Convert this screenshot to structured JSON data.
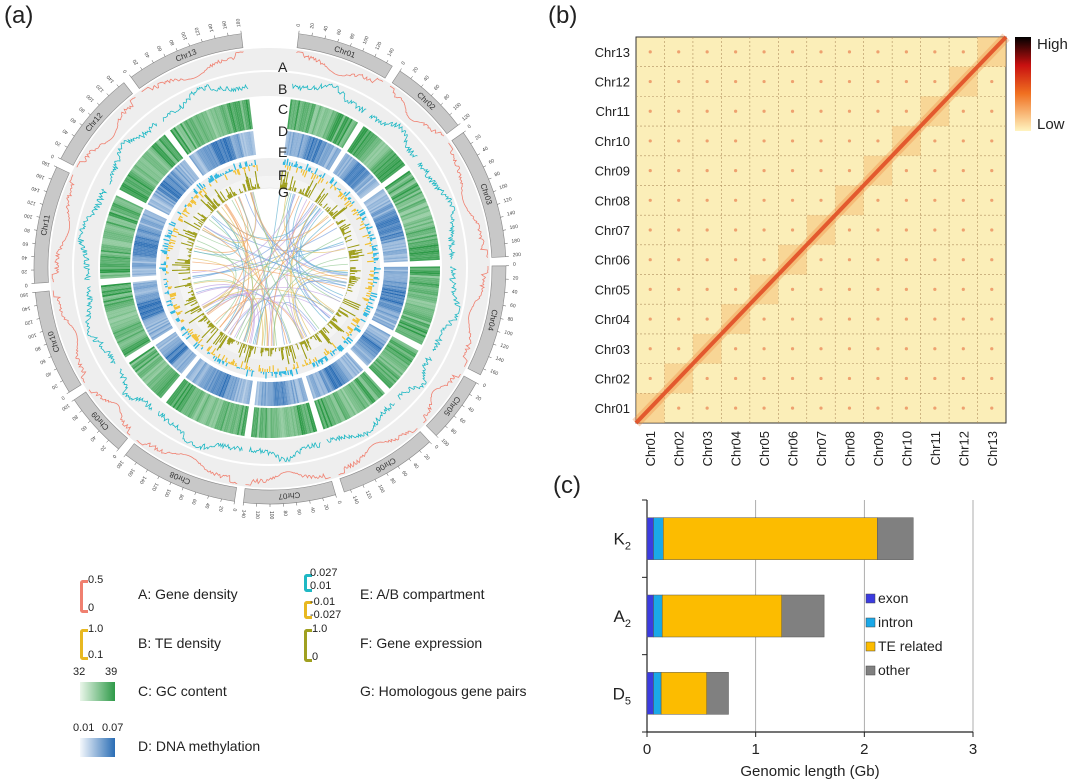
{
  "panels": {
    "a": "(a)",
    "b": "(b)",
    "c": "(c)"
  },
  "circos": {
    "track_letters": [
      "A",
      "B",
      "C",
      "D",
      "E",
      "F",
      "G"
    ],
    "chromosomes": [
      {
        "name": "Chr01",
        "length": 150
      },
      {
        "name": "Chr02",
        "length": 120
      },
      {
        "name": "Chr03",
        "length": 200
      },
      {
        "name": "Chr04",
        "length": 170
      },
      {
        "name": "Chr05",
        "length": 100
      },
      {
        "name": "Chr06",
        "length": 150
      },
      {
        "name": "Chr07",
        "length": 140
      },
      {
        "name": "Chr08",
        "length": 180
      },
      {
        "name": "Chr09",
        "length": 100
      },
      {
        "name": "Chr10",
        "length": 160
      },
      {
        "name": "Chr11",
        "length": 180
      },
      {
        "name": "Chr12",
        "length": 150
      },
      {
        "name": "Chr13",
        "length": 180
      }
    ],
    "tick_interval": 20,
    "colors": {
      "gene_density": "#f08070",
      "te_density": "#1fb8c4",
      "gc": "#2e9a48",
      "methylation": "#2a6db5",
      "compartment_a": "#29b6e0",
      "compartment_b": "#f2c030",
      "expression": "#9a9a10"
    },
    "legend": [
      {
        "text": "A: Gene density",
        "scale": [
          "0.5",
          "0"
        ],
        "color": "#f08070"
      },
      {
        "text": "B: TE density",
        "scale": [
          "1.0",
          "0.1"
        ],
        "color": "#e8b820"
      },
      {
        "text": "C: GC content",
        "scale": [
          "32",
          "39"
        ],
        "color": "#2e9a48"
      },
      {
        "text": "D: DNA methylation",
        "scale": [
          "0.01",
          "0.07"
        ],
        "color": "#2a6db5"
      },
      {
        "text": "E: A/B compartment",
        "scale": [
          "0.027",
          "0.01",
          "-0.01",
          "-0.027"
        ],
        "color": "#1fb8c4",
        "color2": "#e8b820"
      },
      {
        "text": "F: Gene expression",
        "scale": [
          "1.0",
          "0"
        ],
        "color": "#a0a020"
      },
      {
        "text": "G: Homologous gene pairs"
      }
    ]
  },
  "heatmap": {
    "chromosomes": [
      "Chr01",
      "Chr02",
      "Chr03",
      "Chr04",
      "Chr05",
      "Chr06",
      "Chr07",
      "Chr08",
      "Chr09",
      "Chr10",
      "Chr11",
      "Chr12",
      "Chr13"
    ],
    "colorbar": {
      "high": "High",
      "low": "Low"
    }
  },
  "chart_data": {
    "type": "bar",
    "orientation": "horizontal",
    "stacked": true,
    "categories": [
      "K2",
      "A2",
      "D5"
    ],
    "category_labels": [
      {
        "base": "K",
        "sub": "2"
      },
      {
        "base": "A",
        "sub": "2"
      },
      {
        "base": "D",
        "sub": "5"
      }
    ],
    "series": [
      {
        "name": "exon",
        "color": "#3b3be0",
        "values": [
          0.06,
          0.06,
          0.06
        ]
      },
      {
        "name": "intron",
        "color": "#1aa8e8",
        "values": [
          0.09,
          0.08,
          0.07
        ]
      },
      {
        "name": "TE related",
        "color": "#fcbc00",
        "values": [
          1.97,
          1.1,
          0.42
        ]
      },
      {
        "name": "other",
        "color": "#808080",
        "values": [
          0.33,
          0.39,
          0.2
        ]
      }
    ],
    "xlabel": "Genomic length (Gb)",
    "xlim": [
      0,
      3
    ],
    "xticks": [
      "0",
      "1",
      "2",
      "3"
    ],
    "grid": "vertical",
    "legend_placement": "right"
  }
}
